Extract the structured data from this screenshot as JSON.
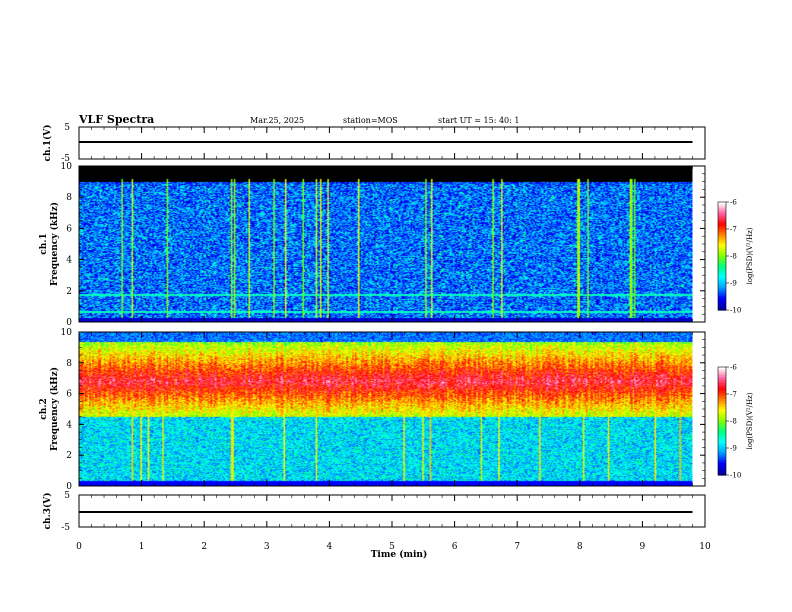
{
  "header": {
    "title": "VLF Spectra",
    "date": "Mar.25, 2025",
    "station": "station=MOS",
    "start": "start  UT =   15: 40: 1"
  },
  "chart_data": [
    {
      "type": "line",
      "name": "ch1-voltage",
      "ylabel": "ch.1(V)",
      "ylim": [
        -5,
        5
      ],
      "yticks": [
        "5",
        "-5"
      ],
      "xlim": [
        0,
        10
      ],
      "x": [
        0,
        9.8
      ],
      "y": [
        0,
        0
      ]
    },
    {
      "type": "heatmap",
      "name": "ch1-spectrogram",
      "ylabel": "ch.1\nFrequency (kHz)",
      "ylim": [
        0,
        10
      ],
      "yticks": [
        "0",
        "2",
        "4",
        "6",
        "8",
        "10"
      ],
      "xlim": [
        0,
        10
      ],
      "x_end": 9.8,
      "colorbar": {
        "label": "log(PSD)(V²/Hz)",
        "range": [
          -10,
          -6
        ],
        "ticks": [
          "-6",
          "-7",
          "-8",
          "-9",
          "-10"
        ]
      },
      "lines_khz": [
        0.6,
        1.7
      ]
    },
    {
      "type": "heatmap",
      "name": "ch2-spectrogram",
      "ylabel": "ch.2\nFrequency (kHz)",
      "ylim": [
        0,
        10
      ],
      "yticks": [
        "0",
        "2",
        "4",
        "6",
        "8",
        "10"
      ],
      "xlim": [
        0,
        10
      ],
      "x_end": 9.8,
      "colorbar": {
        "label": "log(PSD)(V²/Hz)",
        "range": [
          -10,
          -6
        ],
        "ticks": [
          "-6",
          "-7",
          "-8",
          "-9",
          "-10"
        ]
      },
      "band_center_khz": 6.8
    },
    {
      "type": "line",
      "name": "ch3-voltage",
      "ylabel": "ch.3(V)",
      "ylim": [
        -5,
        5
      ],
      "yticks": [
        "5",
        "-5"
      ],
      "xlim": [
        0,
        10
      ],
      "xlabel": "Time (min)",
      "xticks": [
        "0",
        "1",
        "2",
        "3",
        "4",
        "5",
        "6",
        "7",
        "8",
        "9",
        "10"
      ],
      "x": [
        0,
        9.8
      ],
      "y": [
        0,
        0
      ]
    }
  ],
  "colors": {
    "colormap": [
      "#0000a0",
      "#0000ff",
      "#00a0ff",
      "#00ffff",
      "#00ff80",
      "#80ff00",
      "#ffff00",
      "#ff8000",
      "#ff0000",
      "#ff60a0",
      "#ffffff"
    ]
  }
}
